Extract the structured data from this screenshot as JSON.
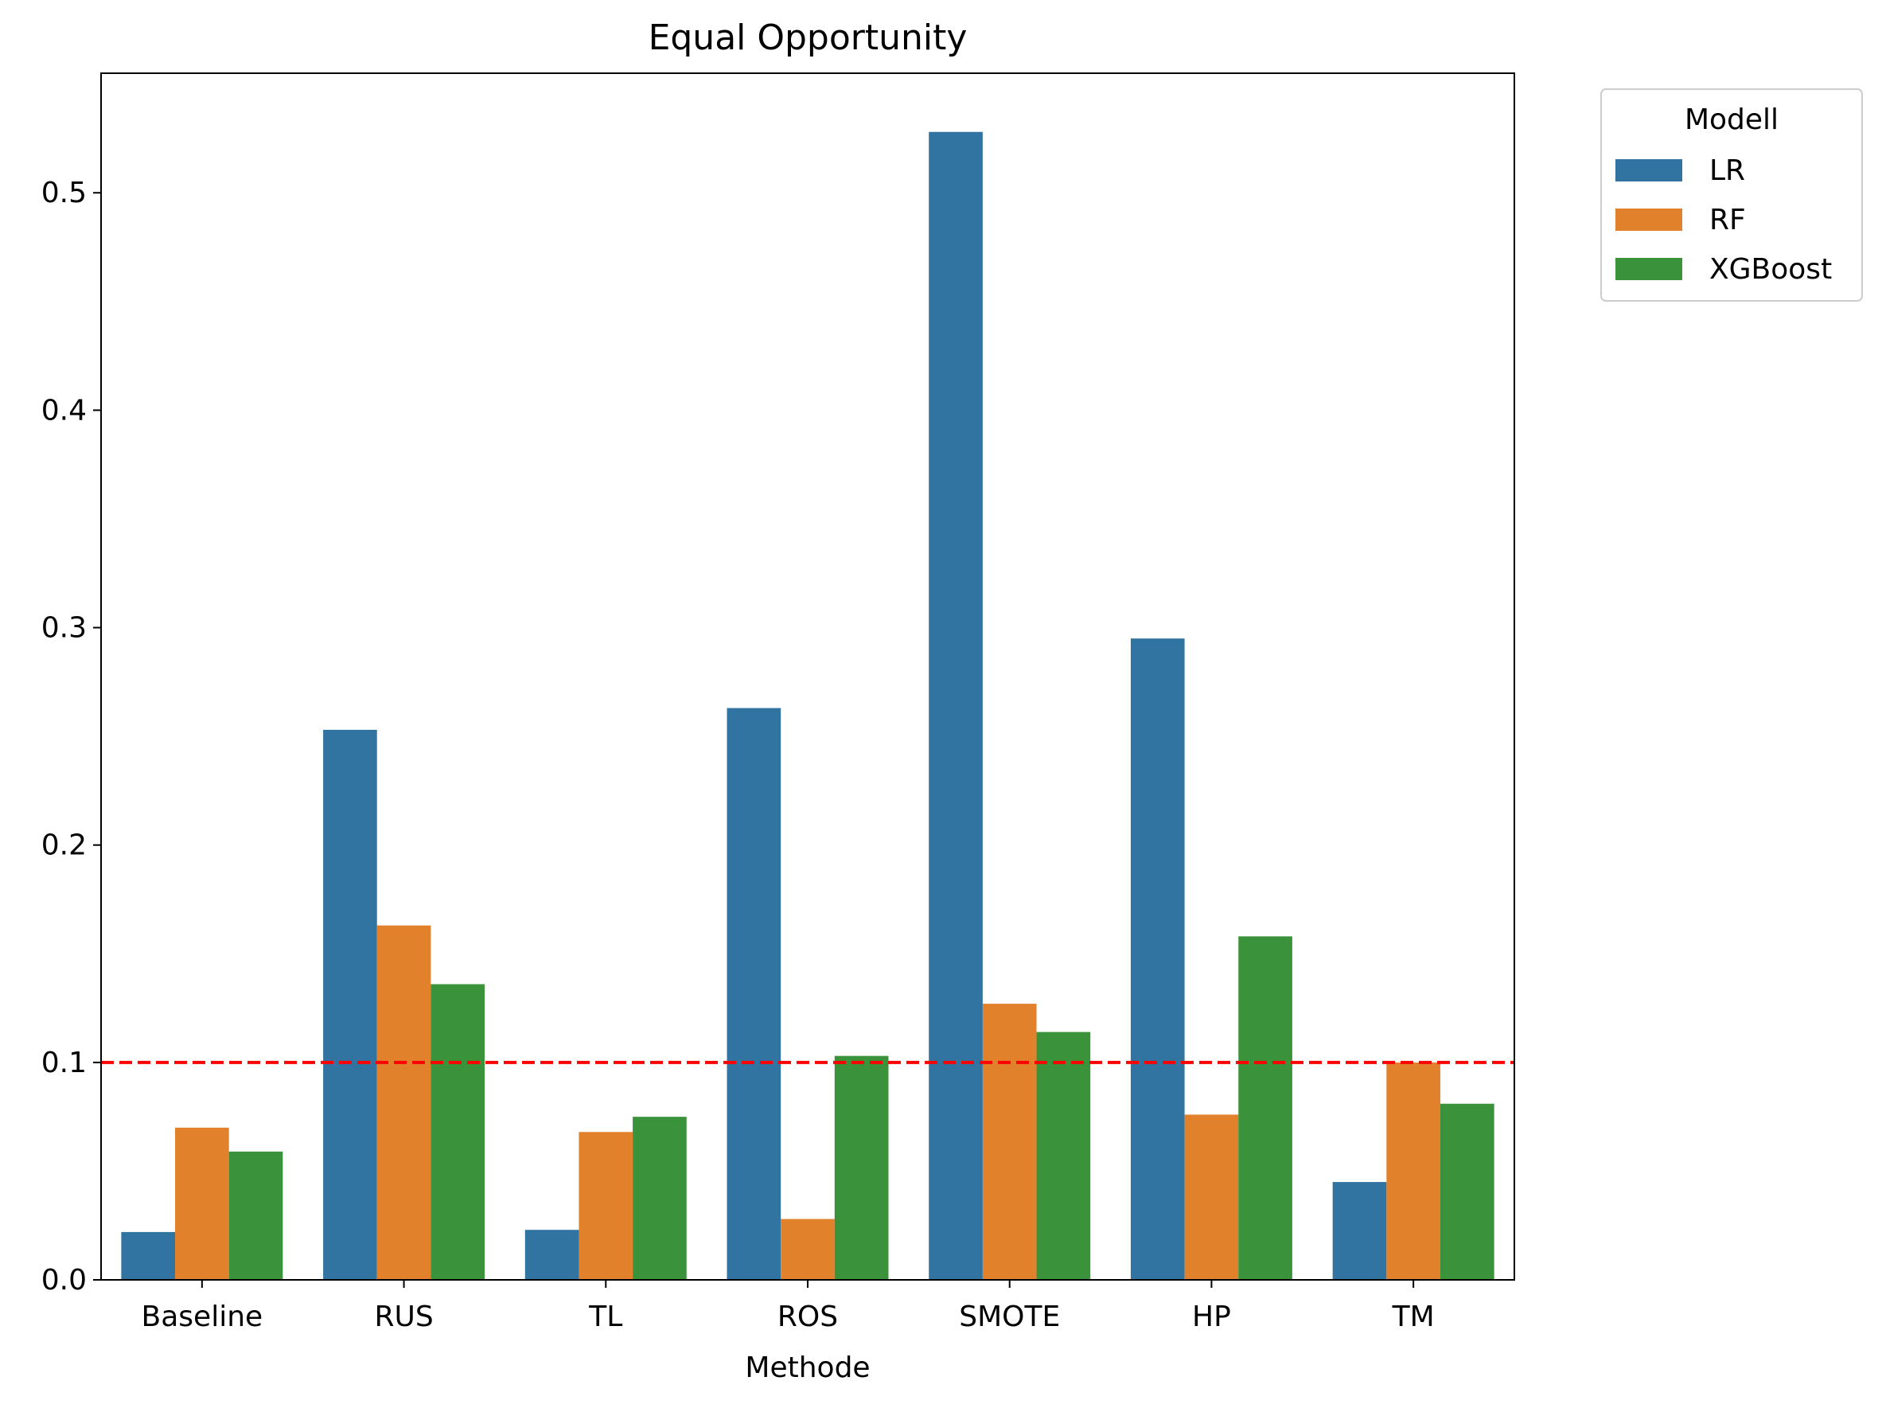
{
  "chart_data": {
    "type": "bar",
    "title": "Equal Opportunity",
    "xlabel": "Methode",
    "ylabel": "",
    "categories": [
      "Baseline",
      "RUS",
      "TL",
      "ROS",
      "SMOTE",
      "HP",
      "TM"
    ],
    "series": [
      {
        "name": "LR",
        "color": "#3274a1",
        "values": [
          0.022,
          0.253,
          0.023,
          0.263,
          0.528,
          0.295,
          0.045
        ]
      },
      {
        "name": "RF",
        "color": "#e1812c",
        "values": [
          0.07,
          0.163,
          0.068,
          0.028,
          0.127,
          0.076,
          0.1
        ]
      },
      {
        "name": "XGBoost",
        "color": "#3a923a",
        "values": [
          0.059,
          0.136,
          0.075,
          0.103,
          0.114,
          0.158,
          0.081
        ]
      }
    ],
    "ylim": [
      0,
      0.555
    ],
    "yticks": [
      "0.0",
      "0.1",
      "0.2",
      "0.3",
      "0.4",
      "0.5"
    ],
    "reference_line": {
      "value": 0.1,
      "color": "#ff0000",
      "style": "dashed"
    },
    "legend": {
      "title": "Modell",
      "placement": "outside-top-right"
    },
    "grid": false
  }
}
